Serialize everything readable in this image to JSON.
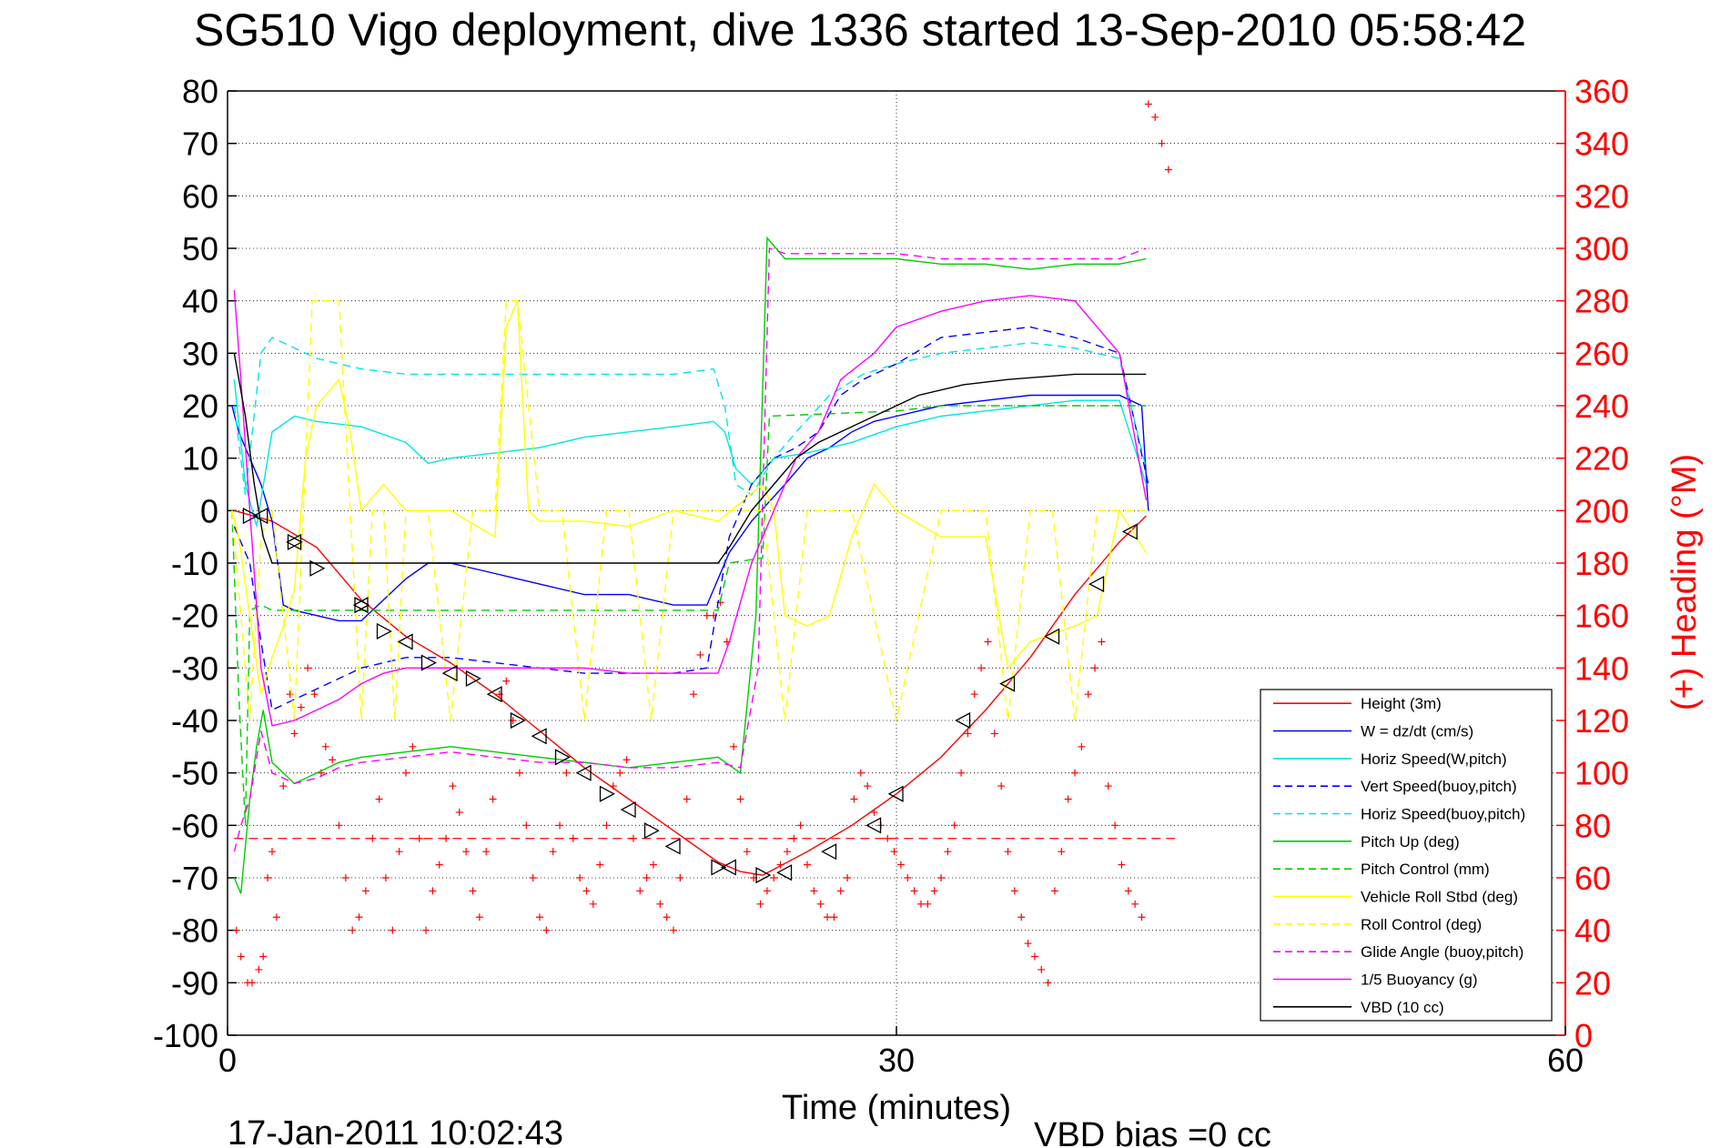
{
  "chart_data": {
    "type": "line",
    "title": "SG510 Vigo deployment, dive 1336 started 13-Sep-2010 05:58:42",
    "xlabel": "Time (minutes)",
    "ylabel_right": "(+) Heading (°M)",
    "footer_left": "17-Jan-2011 10:02:43",
    "footer_right": "VBD bias =0 cc",
    "xlim": [
      0,
      60
    ],
    "ylim_left": [
      -100,
      80
    ],
    "ylim_right": [
      0,
      360
    ],
    "x_ticks": [
      "0",
      "30",
      "60"
    ],
    "y_ticks_left": [
      "80",
      "70",
      "60",
      "50",
      "40",
      "30",
      "20",
      "10",
      "0",
      "-10",
      "-20",
      "-30",
      "-40",
      "-50",
      "-60",
      "-70",
      "-80",
      "-90",
      "-100"
    ],
    "y_ticks_right": [
      "360",
      "340",
      "320",
      "300",
      "280",
      "260",
      "240",
      "220",
      "200",
      "180",
      "160",
      "140",
      "120",
      "100",
      "80",
      "60",
      "40",
      "20",
      "0"
    ],
    "grid": "dotted",
    "legend_position": "bottom-right",
    "colors": {
      "red": "#ff0000",
      "blue": "#0000ff",
      "cyan": "#00e5e5",
      "green": "#00cc00",
      "yellow": "#ffff00",
      "magenta": "#ff00ff",
      "black": "#000000"
    },
    "series": [
      {
        "name": "Height (3m)",
        "color": "#ff0000",
        "dash": false,
        "x": [
          0.3,
          2,
          4,
          6,
          8,
          10,
          12,
          14,
          16,
          18,
          20,
          22,
          23,
          24,
          26,
          28,
          30,
          32,
          34,
          36,
          38,
          40,
          41.2
        ],
        "y": [
          0,
          -2,
          -7,
          -17,
          -24,
          -29,
          -35,
          -42,
          -49,
          -55,
          -61,
          -67,
          -68.8,
          -69.5,
          -65,
          -60,
          -54,
          -47,
          -38,
          -28,
          -16,
          -6,
          -1
        ]
      },
      {
        "name": "W = dz/dt (cm/s)",
        "color": "#0000ff",
        "dash": false,
        "x": [
          0.2,
          0.5,
          1,
          1.5,
          2,
          2.5,
          3,
          4,
          5,
          6,
          7,
          8,
          9,
          10,
          12,
          14,
          16,
          18,
          20,
          21.5,
          22.5,
          23.5,
          25,
          26,
          27,
          28,
          29,
          30,
          32,
          34,
          36,
          38,
          40,
          41,
          41.3
        ],
        "y": [
          20,
          15,
          10,
          5,
          -2,
          -18,
          -19,
          -20,
          -21,
          -21,
          -17,
          -13,
          -10,
          -10,
          -12,
          -14,
          -16,
          -16,
          -18,
          -18,
          -8,
          -2,
          5,
          10,
          12,
          15,
          17,
          18,
          20,
          21,
          22,
          22,
          22,
          20,
          0
        ]
      },
      {
        "name": "Horiz Speed(W,pitch)",
        "color": "#00e5e5",
        "dash": false,
        "x": [
          0.3,
          0.8,
          1.3,
          2,
          3,
          4,
          6,
          8,
          9,
          10,
          12,
          14,
          16,
          18,
          20,
          21.8,
          22.3,
          22.8,
          23.5,
          24.5,
          26,
          28,
          30,
          32,
          34,
          36,
          38,
          40,
          41.2
        ],
        "y": [
          25,
          5,
          -3,
          15,
          18,
          17,
          16,
          13,
          9,
          10,
          11,
          12,
          14,
          15,
          16,
          17,
          15,
          8,
          5,
          10,
          11,
          13,
          16,
          18,
          19,
          20,
          21,
          21,
          5
        ]
      },
      {
        "name": "Vert Speed(buoy,pitch)",
        "color": "#0000ff",
        "dash": true,
        "x": [
          0.3,
          1,
          1.5,
          2,
          3,
          4,
          5,
          6,
          7,
          8,
          10,
          12,
          14,
          16,
          18,
          20,
          21.5,
          22.5,
          23.5,
          24.5,
          25.5,
          26.5,
          27.5,
          28.5,
          30,
          32,
          34,
          36,
          38,
          40,
          41.3
        ],
        "y": [
          -3,
          -10,
          -25,
          -38,
          -36,
          -34,
          -32,
          -30,
          -29,
          -28,
          -28,
          -29,
          -30,
          -31,
          -31,
          -31,
          -30,
          -5,
          5,
          10,
          12,
          15,
          22,
          25,
          28,
          33,
          34,
          35,
          33,
          30,
          5
        ]
      },
      {
        "name": "Horiz Speed(buoy,pitch)",
        "color": "#00e5e5",
        "dash": true,
        "x": [
          0.3,
          0.8,
          1.5,
          2,
          3,
          4,
          6,
          8,
          10,
          12,
          14,
          16,
          18,
          20,
          21.8,
          22.3,
          22.8,
          23.5,
          24.5,
          25.5,
          27,
          28.5,
          30,
          32,
          34,
          36,
          38,
          40,
          41.2
        ],
        "y": [
          20,
          3,
          30,
          33,
          31,
          29,
          27,
          26,
          26,
          26,
          26,
          26,
          26,
          26,
          27,
          20,
          5,
          3,
          10,
          15,
          22,
          26,
          28,
          30,
          31,
          32,
          31,
          29,
          8
        ]
      },
      {
        "name": "Pitch Up (deg)",
        "color": "#00cc00",
        "dash": false,
        "x": [
          0.3,
          0.6,
          1,
          1.3,
          1.6,
          2,
          2.5,
          3,
          4,
          5,
          6,
          8,
          10,
          12,
          14,
          16,
          18,
          20,
          22,
          23,
          23.7,
          24.2,
          25,
          27,
          30,
          32,
          34,
          36,
          38,
          40,
          41.2
        ],
        "y": [
          -70,
          -73,
          -55,
          -45,
          -38,
          -48,
          -50,
          -52,
          -50,
          -48,
          -47,
          -46,
          -45,
          -46,
          -47,
          -48,
          -49,
          -48,
          -47,
          -50,
          -20,
          52,
          48,
          48,
          48,
          47,
          47,
          46,
          47,
          47,
          48
        ]
      },
      {
        "name": "Pitch Control (mm)",
        "color": "#00cc00",
        "dash": true,
        "x": [
          0.2,
          0.5,
          0.8,
          1,
          1.5,
          2,
          21.5,
          22,
          22.5,
          24,
          24.3,
          30,
          32,
          41.2
        ],
        "y": [
          0,
          -35,
          -60,
          -19,
          -18,
          -19,
          -19,
          -19,
          -10,
          -9,
          18,
          19,
          20,
          20
        ]
      },
      {
        "name": "Vehicle Roll Stbd (deg)",
        "color": "#ffff00",
        "dash": false,
        "x": [
          0.2,
          0.5,
          1,
          1.5,
          2,
          2.5,
          3,
          3.5,
          4,
          5,
          5.5,
          6,
          7,
          8,
          9,
          10,
          12,
          12.5,
          13,
          13.5,
          14,
          16,
          18,
          20,
          22,
          24,
          24.5,
          25,
          26,
          27,
          28,
          29,
          30,
          32,
          34,
          35,
          36,
          38,
          39,
          40,
          41.2
        ],
        "y": [
          0,
          -5,
          -20,
          -35,
          -28,
          -22,
          -15,
          10,
          20,
          25,
          15,
          0,
          5,
          0,
          0,
          0,
          -5,
          35,
          40,
          0,
          -2,
          -2,
          -3,
          0,
          -2,
          5,
          0,
          -20,
          -22,
          -20,
          -5,
          5,
          0,
          -5,
          -5,
          -30,
          -25,
          -22,
          -20,
          0,
          -8
        ]
      },
      {
        "name": "Roll Control (deg)",
        "color": "#ffff00",
        "dash": true,
        "x": [
          0.2,
          1,
          1.5,
          2,
          3,
          3.4,
          3.8,
          4.2,
          5,
          5.5,
          6,
          6.5,
          7,
          7.5,
          8,
          9,
          10,
          11,
          12,
          12.5,
          13,
          14,
          15,
          16,
          17,
          18,
          19,
          20,
          21,
          22,
          24,
          25,
          26,
          28,
          30,
          32,
          34,
          35,
          36,
          37,
          38,
          39,
          40,
          41.2
        ],
        "y": [
          0,
          -40,
          -5,
          0,
          -40,
          0,
          40,
          40,
          40,
          0,
          -40,
          0,
          0,
          -40,
          0,
          0,
          -40,
          0,
          0,
          40,
          40,
          0,
          0,
          -40,
          0,
          0,
          -40,
          0,
          0,
          0,
          0,
          -40,
          0,
          0,
          -40,
          0,
          0,
          -40,
          0,
          0,
          -40,
          0,
          0,
          0
        ]
      },
      {
        "name": "Glide Angle (buoy,pitch)",
        "color": "#ff00ff",
        "dash": true,
        "x": [
          0.3,
          0.6,
          1,
          1.5,
          2,
          2.5,
          3,
          4,
          5,
          6,
          8,
          10,
          12,
          14,
          16,
          18,
          20,
          22,
          23,
          23.8,
          24.3,
          25,
          27,
          30,
          32,
          34,
          36,
          38,
          40,
          41.2
        ],
        "y": [
          -65,
          -60,
          -55,
          -42,
          -50,
          -51,
          -52,
          -51,
          -49,
          -48,
          -47,
          -46,
          -47,
          -48,
          -48,
          -49,
          -49,
          -48,
          -49,
          -30,
          50,
          49,
          49,
          49,
          48,
          48,
          48,
          48,
          48,
          50
        ]
      },
      {
        "name": "1/5 Buoyancy (g)",
        "color": "#ff00ff",
        "dash": false,
        "x": [
          0.3,
          0.6,
          1,
          1.5,
          2,
          3,
          4,
          5,
          6,
          7,
          8,
          9,
          10,
          12,
          14,
          16,
          18,
          20,
          22,
          22.5,
          23.5,
          24.5,
          25.5,
          26.5,
          27.5,
          29,
          30,
          32,
          34,
          36,
          38,
          40,
          41.2
        ],
        "y": [
          42,
          25,
          0,
          -30,
          -41,
          -40,
          -38,
          -36,
          -33,
          -31,
          -30,
          -30,
          -30,
          -30,
          -30,
          -30,
          -31,
          -31,
          -31,
          -25,
          -10,
          0,
          10,
          15,
          25,
          30,
          35,
          38,
          40,
          41,
          40,
          30,
          2
        ]
      },
      {
        "name": "VBD (10 cc)",
        "color": "#000000",
        "dash": false,
        "x": [
          0.3,
          0.8,
          1.2,
          1.6,
          2,
          3,
          22,
          22.5,
          23.5,
          24.5,
          25.5,
          26.5,
          27.5,
          28.5,
          30,
          31,
          33,
          35,
          38,
          41.2
        ],
        "y": [
          30,
          18,
          5,
          -5,
          -10,
          -10,
          -10,
          -7,
          0,
          5,
          10,
          13,
          15,
          17,
          20,
          22,
          24,
          25,
          26,
          26
        ]
      }
    ],
    "height_markers": {
      "right_triangles": [
        [
          1,
          -1
        ],
        [
          3,
          -6
        ],
        [
          4,
          -11
        ],
        [
          6,
          -18
        ],
        [
          7,
          -23
        ],
        [
          9,
          -29
        ],
        [
          11,
          -32
        ],
        [
          13,
          -40
        ],
        [
          15,
          -47
        ],
        [
          17,
          -54
        ],
        [
          19,
          -61
        ],
        [
          22,
          -68
        ],
        [
          24,
          -69.5
        ]
      ],
      "left_triangles": [
        [
          1.5,
          -1
        ],
        [
          3,
          -6
        ],
        [
          6,
          -18
        ],
        [
          8,
          -25
        ],
        [
          10,
          -31
        ],
        [
          12,
          -35
        ],
        [
          14,
          -43
        ],
        [
          16,
          -50
        ],
        [
          18,
          -57
        ],
        [
          20,
          -64
        ],
        [
          22.5,
          -68
        ],
        [
          25,
          -69
        ],
        [
          27,
          -65
        ],
        [
          29,
          -60
        ],
        [
          30,
          -54
        ],
        [
          33,
          -40
        ],
        [
          35,
          -33
        ],
        [
          37,
          -24
        ],
        [
          39,
          -14
        ],
        [
          40.5,
          -4
        ]
      ]
    },
    "reference_line": {
      "name": "",
      "color": "#ff0000",
      "dash": true,
      "y": -62.5,
      "x": [
        0.3,
        42.5
      ]
    },
    "heading_points": {
      "axis": "right",
      "color": "#ff0000",
      "marker": "+",
      "x": [
        0.4,
        0.6,
        0.9,
        1.1,
        1.4,
        1.6,
        1.8,
        2.0,
        2.2,
        2.5,
        2.8,
        3.0,
        3.3,
        3.6,
        3.9,
        4.2,
        4.4,
        4.7,
        5.0,
        5.3,
        5.6,
        5.9,
        6.2,
        6.5,
        6.8,
        7.1,
        7.4,
        7.7,
        8.0,
        8.3,
        8.6,
        8.9,
        9.2,
        9.5,
        9.8,
        10.1,
        10.4,
        10.7,
        11.0,
        11.3,
        11.6,
        11.9,
        12.2,
        12.5,
        12.8,
        13.1,
        13.4,
        13.7,
        14.0,
        14.3,
        14.6,
        14.9,
        15.2,
        15.5,
        15.8,
        16.1,
        16.4,
        16.7,
        17.0,
        17.3,
        17.6,
        17.9,
        18.2,
        18.5,
        18.8,
        19.1,
        19.4,
        19.7,
        20.0,
        20.3,
        20.6,
        20.9,
        21.2,
        21.5,
        21.8,
        22.1,
        22.4,
        22.7,
        23.0,
        23.3,
        23.6,
        23.9,
        24.2,
        24.5,
        24.8,
        25.1,
        25.4,
        25.7,
        26.0,
        26.3,
        26.6,
        26.9,
        27.2,
        27.5,
        27.8,
        28.1,
        28.4,
        28.7,
        29.0,
        29.3,
        29.6,
        29.9,
        30.2,
        30.5,
        30.8,
        31.1,
        31.4,
        31.7,
        32.0,
        32.3,
        32.6,
        32.9,
        33.2,
        33.5,
        33.8,
        34.1,
        34.4,
        34.7,
        35.0,
        35.3,
        35.6,
        35.9,
        36.2,
        36.5,
        36.8,
        37.1,
        37.4,
        37.7,
        38.0,
        38.3,
        38.6,
        38.9,
        39.2,
        39.5,
        39.8,
        40.1,
        40.4,
        40.7,
        41.0,
        41.3,
        41.6,
        41.9,
        42.2
      ],
      "y": [
        40,
        30,
        20,
        20,
        25,
        30,
        60,
        70,
        45,
        95,
        130,
        115,
        125,
        140,
        130,
        100,
        110,
        105,
        80,
        60,
        40,
        45,
        55,
        75,
        90,
        60,
        40,
        70,
        100,
        110,
        75,
        40,
        55,
        65,
        75,
        95,
        85,
        70,
        55,
        45,
        70,
        90,
        130,
        135,
        120,
        100,
        80,
        60,
        45,
        40,
        70,
        80,
        100,
        75,
        60,
        55,
        50,
        65,
        80,
        95,
        100,
        105,
        75,
        55,
        60,
        65,
        50,
        45,
        40,
        60,
        90,
        130,
        145,
        160,
        160,
        165,
        150,
        110,
        90,
        70,
        60,
        50,
        55,
        60,
        65,
        70,
        75,
        80,
        65,
        55,
        50,
        45,
        45,
        55,
        60,
        90,
        100,
        95,
        85,
        80,
        75,
        70,
        65,
        60,
        55,
        50,
        50,
        55,
        60,
        70,
        80,
        100,
        115,
        130,
        140,
        150,
        115,
        95,
        70,
        55,
        45,
        35,
        30,
        25,
        20,
        55,
        70,
        90,
        100,
        110,
        130,
        140,
        150,
        95,
        80,
        65,
        55,
        50,
        45,
        355,
        350,
        340,
        330
      ]
    }
  }
}
